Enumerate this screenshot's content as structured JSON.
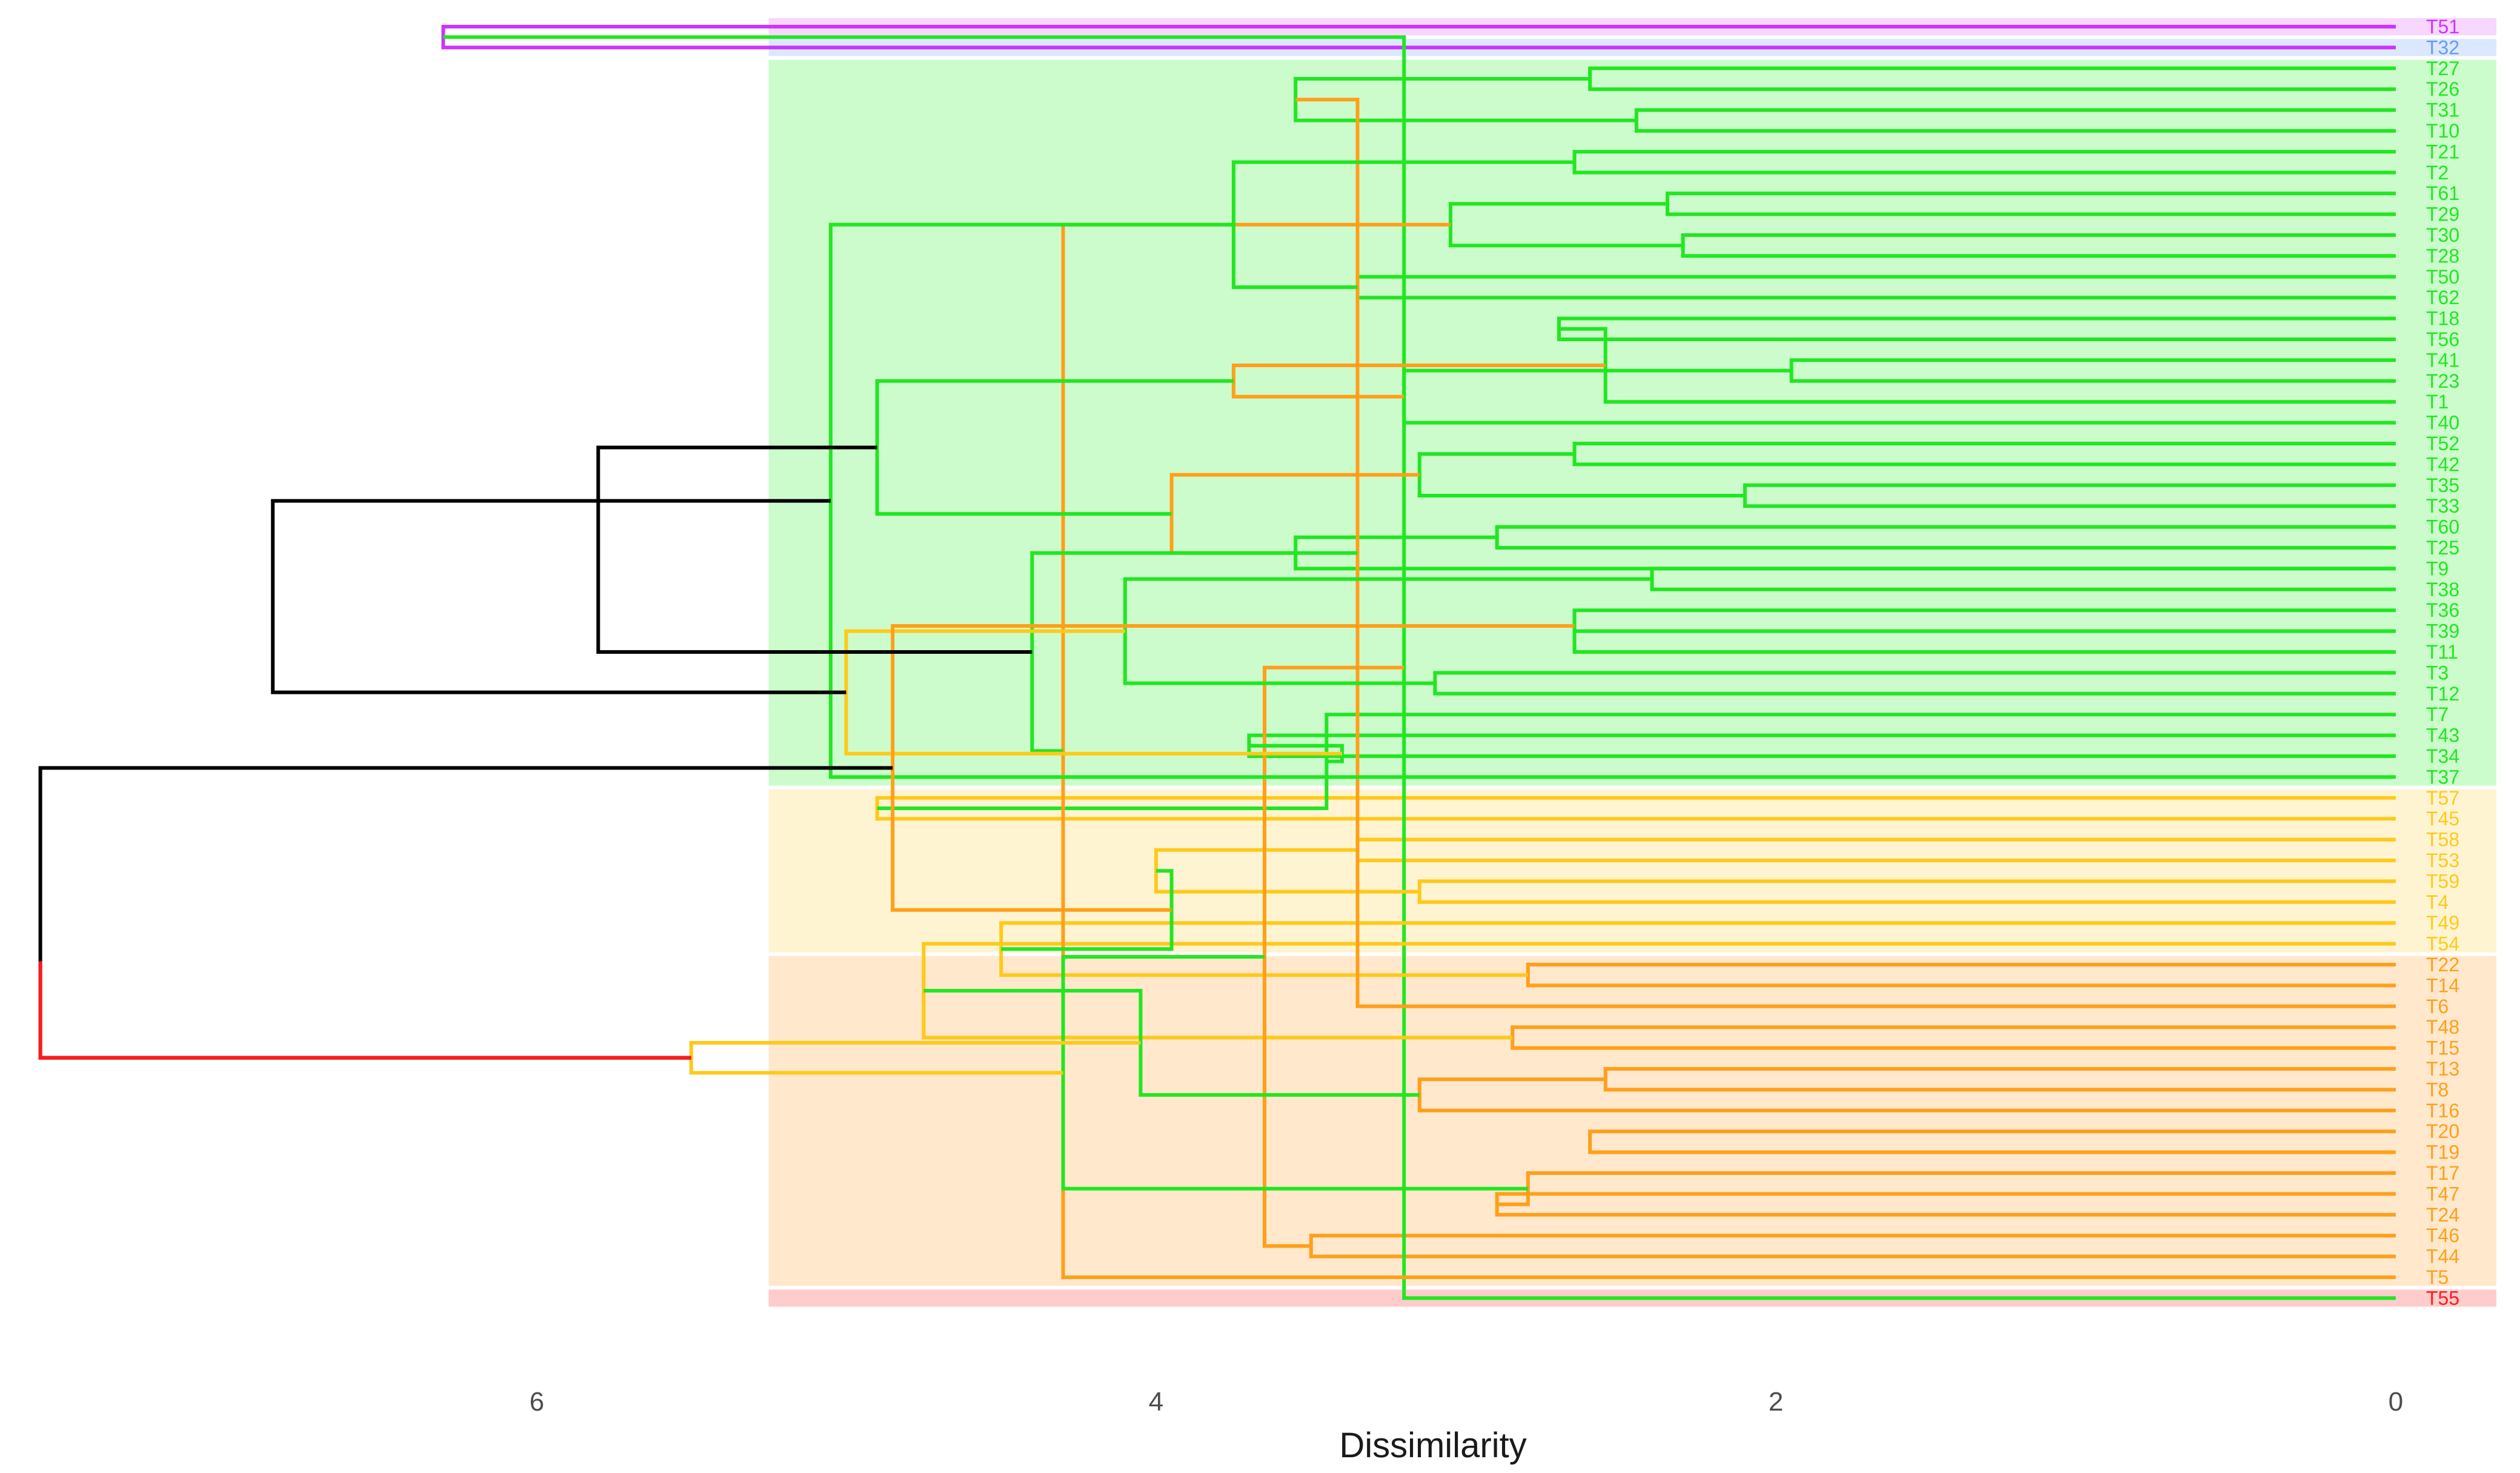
{
  "chart_data": {
    "type": "dendrogram",
    "orientation": "horizontal-reversed",
    "xlabel": "Dissimilarity",
    "xlim": [
      7.65,
      -0.12
    ],
    "xticks": [
      6,
      4,
      2,
      0
    ],
    "xtick_labels": [
      "6",
      "4",
      "2",
      "0"
    ],
    "leaf_order": [
      "T51",
      "T32",
      "T27",
      "T26",
      "T31",
      "T10",
      "T21",
      "T2",
      "T61",
      "T29",
      "T30",
      "T28",
      "T50",
      "T62",
      "T18",
      "T56",
      "T41",
      "T23",
      "T1",
      "T40",
      "T52",
      "T42",
      "T35",
      "T33",
      "T60",
      "T25",
      "T9",
      "T38",
      "T36",
      "T39",
      "T11",
      "T3",
      "T12",
      "T7",
      "T43",
      "T34",
      "T37",
      "T57",
      "T45",
      "T58",
      "T53",
      "T59",
      "T4",
      "T49",
      "T54",
      "T22",
      "T14",
      "T6",
      "T48",
      "T15",
      "T13",
      "T8",
      "T16",
      "T20",
      "T19",
      "T17",
      "T47",
      "T24",
      "T46",
      "T44",
      "T5",
      "T55"
    ],
    "clusters": [
      {
        "name": "cluster-1",
        "color": "#cc33ff",
        "band": "#f7d6ff",
        "first_leaf": 0,
        "last_leaf": 0
      },
      {
        "name": "cluster-2",
        "color": "#6699ff",
        "band": "#dce8ff",
        "first_leaf": 1,
        "last_leaf": 1
      },
      {
        "name": "cluster-3",
        "color": "#22e622",
        "band": "#ccfccc",
        "first_leaf": 2,
        "last_leaf": 36
      },
      {
        "name": "cluster-4",
        "color": "#ffc91a",
        "band": "#fff4d1",
        "first_leaf": 37,
        "last_leaf": 44
      },
      {
        "name": "cluster-5",
        "color": "#ff9f1a",
        "band": "#ffe8cc",
        "first_leaf": 45,
        "last_leaf": 60
      },
      {
        "name": "cluster-6",
        "color": "#ff1a1a",
        "band": "#ffcccc",
        "first_leaf": 61,
        "last_leaf": 61
      }
    ],
    "band_start_height": 5.25,
    "merges": [
      [
        0,
        1,
        6.3,
        "#cc33ff",
        "T51"
      ],
      [
        2,
        3,
        2.6,
        "#22e622"
      ],
      [
        4,
        5,
        2.45,
        "#22e622"
      ],
      [
        6,
        7,
        2.65,
        "#22e622"
      ],
      [
        8,
        9,
        2.35,
        "#22e622"
      ],
      [
        10,
        11,
        2.3,
        "#22e622"
      ],
      [
        12,
        13,
        3.35,
        "#22e622"
      ],
      [
        14,
        15,
        2.7,
        "#22e622"
      ],
      [
        16,
        17,
        1.95,
        "#22e622"
      ],
      [
        20,
        21,
        2.65,
        "#22e622"
      ],
      [
        22,
        23,
        2.1,
        "#22e622"
      ],
      [
        24,
        25,
        2.9,
        "#22e622"
      ],
      [
        26,
        27,
        2.4,
        "#22e622"
      ],
      [
        29,
        30,
        2.65,
        "#22e622"
      ],
      [
        34,
        35,
        3.7,
        "#22e622"
      ],
      [
        37,
        38,
        4.9,
        "#ffc91a"
      ],
      [
        39,
        40,
        3.35,
        "#ffc91a"
      ],
      [
        41,
        42,
        3.15,
        "#ffc91a"
      ],
      [
        45,
        46,
        2.8,
        "#ff9f1a"
      ],
      [
        48,
        49,
        2.85,
        "#ff9f1a"
      ],
      [
        50,
        51,
        2.55,
        "#ff9f1a"
      ],
      [
        53,
        54,
        2.6,
        "#ff9f1a"
      ],
      [
        56,
        57,
        2.9,
        "#ff9f1a"
      ],
      [
        58,
        59,
        3.5,
        "#ff9f1a"
      ],
      [
        61,
        62,
        3.2,
        "#22e622"
      ],
      [
        63,
        64,
        3.55,
        "#22e622"
      ],
      [
        66,
        67,
        3.05,
        "#22e622"
      ],
      [
        18,
        69,
        2.55,
        "#22e622"
      ],
      [
        70,
        19,
        3.2,
        "#22e622"
      ],
      [
        71,
        72,
        3.15,
        "#22e622"
      ],
      [
        73,
        26,
        3.55,
        "#22e622"
      ],
      [
        75,
        28,
        2.65,
        "#22e622"
      ],
      [
        31,
        32,
        3.1,
        "#22e622"
      ],
      [
        77,
        33,
        3.45,
        "#22e622"
      ],
      [
        78,
        79,
        4.0,
        "#ffc91a"
      ],
      [
        80,
        43,
        4.5,
        "#ffc91a"
      ],
      [
        81,
        44,
        4.75,
        "#ffc91a"
      ],
      [
        52,
        82,
        3.15,
        "#ff9f1a"
      ],
      [
        84,
        55,
        2.8,
        "#ff9f1a"
      ],
      [
        85,
        86,
        3.65,
        "#ff9f1a"
      ],
      [
        47,
        87,
        3.35,
        "#ff9f1a"
      ],
      [
        88,
        60,
        4.3,
        "#ff9f1a"
      ],
      [
        89,
        90,
        3.75,
        "#ff9f1a"
      ],
      [
        91,
        92,
        3.95,
        "#ff9f1a"
      ],
      [
        65,
        68,
        3.75,
        "#22e622"
      ],
      [
        94,
        74,
        4.1,
        "#22e622"
      ],
      [
        76,
        95,
        3.4,
        "#22e622"
      ],
      [
        96,
        97,
        3.95,
        "#22e622"
      ],
      [
        98,
        99,
        4.05,
        "#22e622"
      ],
      [
        100,
        101,
        4.3,
        "#22e622"
      ],
      [
        102,
        103,
        4.4,
        "#22e622"
      ],
      [
        104,
        105,
        4.9,
        "#22e622"
      ],
      [
        106,
        36,
        5.05,
        "#22e622"
      ],
      [
        107,
        108,
        5.0,
        "#ffc91a"
      ],
      [
        93,
        109,
        4.85,
        "#ff9f1a"
      ],
      [
        110,
        111,
        5.5,
        "#ffc91a"
      ],
      [
        112,
        113,
        5.8,
        "#000000"
      ],
      [
        114,
        115,
        6.85,
        "#000000"
      ],
      [
        116,
        117,
        7.6,
        "#000000"
      ]
    ]
  }
}
